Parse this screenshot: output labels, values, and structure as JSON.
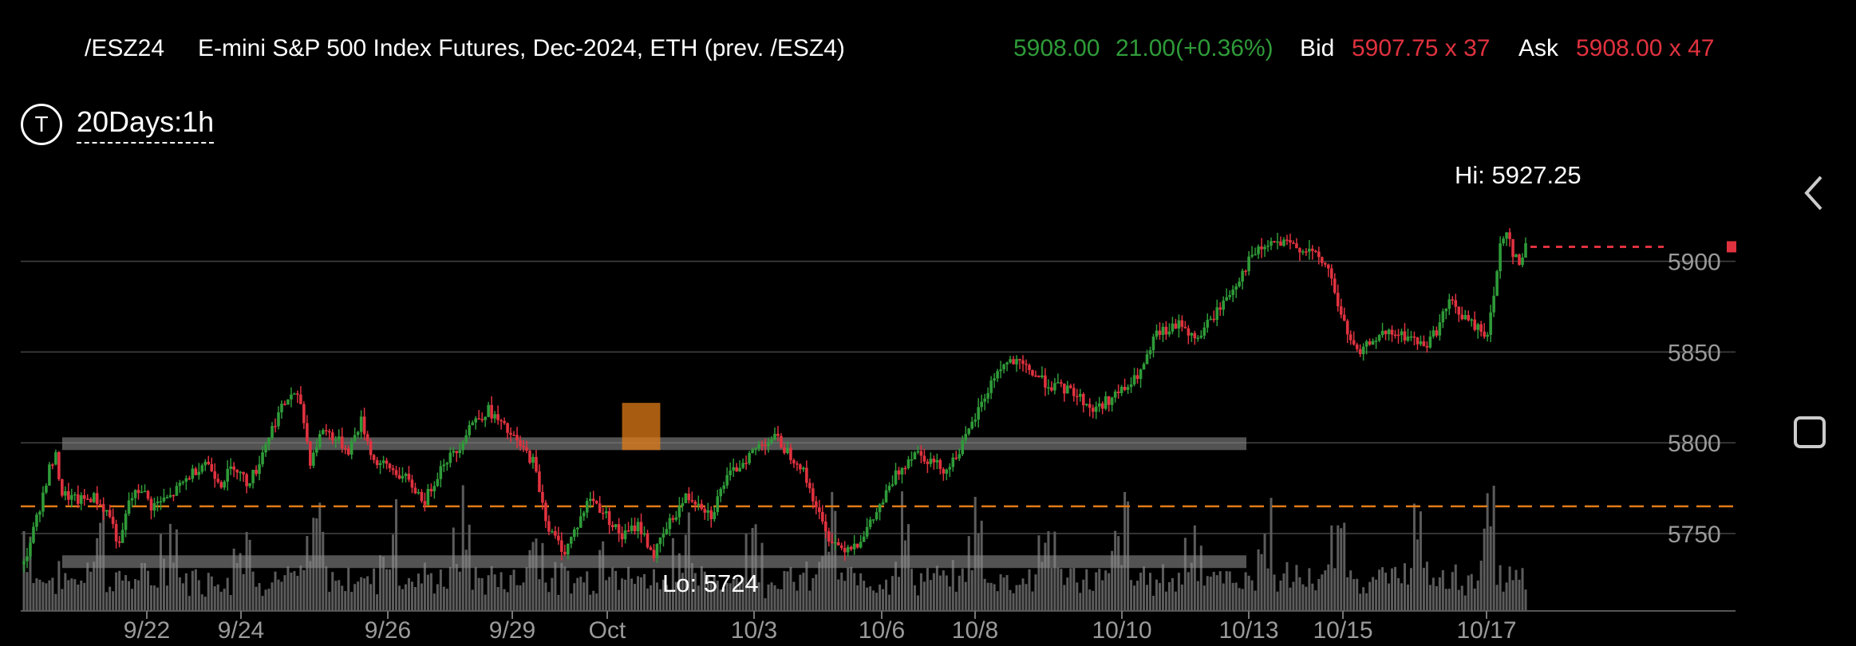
{
  "header": {
    "symbol": "/ESZ24",
    "description": "E-mini S&P 500 Index Futures, Dec-2024, ETH (prev. /ESZ4)",
    "last": "5908.00",
    "change": "21.00(+0.36%)",
    "bid_label": "Bid",
    "bid": "5907.75 x 37",
    "ask_label": "Ask",
    "ask": "5908.00 x 47"
  },
  "timeframe": {
    "icon": "T",
    "label": "20Days:1h"
  },
  "chart_data": {
    "type": "candlestick",
    "ylim": [
      5710,
      5935
    ],
    "y_ticks": [
      "5900",
      "5850",
      "5800",
      "5750"
    ],
    "x_ticks": [
      "9/22",
      "9/24",
      "9/26",
      "9/29",
      "Oct",
      "10/3",
      "10/6",
      "10/8",
      "10/10",
      "10/13",
      "10/15",
      "10/17"
    ],
    "hi_label": "Hi: 5927.25",
    "lo_label": "Lo: 5724",
    "last_price": 5908.0,
    "reference_line": 5765,
    "zones": [
      {
        "from": 5796,
        "to": 5803,
        "color": "#8a8a8a"
      },
      {
        "from": 5731,
        "to": 5738,
        "color": "#8a8a8a"
      },
      {
        "from": 5796,
        "to": 5822,
        "color": "#e07b17"
      }
    ],
    "price_path": [
      [
        0,
        5733
      ],
      [
        4,
        5758
      ],
      [
        8,
        5786
      ],
      [
        10,
        5792
      ],
      [
        12,
        5772
      ],
      [
        17,
        5768
      ],
      [
        22,
        5770
      ],
      [
        27,
        5760
      ],
      [
        30,
        5742
      ],
      [
        33,
        5768
      ],
      [
        37,
        5775
      ],
      [
        40,
        5765
      ],
      [
        46,
        5770
      ],
      [
        52,
        5782
      ],
      [
        57,
        5790
      ],
      [
        62,
        5778
      ],
      [
        66,
        5788
      ],
      [
        70,
        5778
      ],
      [
        73,
        5785
      ],
      [
        76,
        5800
      ],
      [
        80,
        5816
      ],
      [
        84,
        5827
      ],
      [
        87,
        5822
      ],
      [
        90,
        5790
      ],
      [
        94,
        5808
      ],
      [
        98,
        5802
      ],
      [
        102,
        5796
      ],
      [
        106,
        5812
      ],
      [
        110,
        5790
      ],
      [
        115,
        5786
      ],
      [
        120,
        5780
      ],
      [
        126,
        5768
      ],
      [
        132,
        5790
      ],
      [
        136,
        5795
      ],
      [
        140,
        5810
      ],
      [
        146,
        5818
      ],
      [
        150,
        5810
      ],
      [
        155,
        5800
      ],
      [
        160,
        5790
      ],
      [
        165,
        5752
      ],
      [
        170,
        5740
      ],
      [
        174,
        5755
      ],
      [
        178,
        5770
      ],
      [
        183,
        5760
      ],
      [
        188,
        5748
      ],
      [
        193,
        5755
      ],
      [
        198,
        5738
      ],
      [
        203,
        5756
      ],
      [
        208,
        5770
      ],
      [
        212,
        5768
      ],
      [
        216,
        5760
      ],
      [
        220,
        5778
      ],
      [
        226,
        5790
      ],
      [
        232,
        5800
      ],
      [
        236,
        5803
      ],
      [
        240,
        5795
      ],
      [
        244,
        5788
      ],
      [
        248,
        5770
      ],
      [
        252,
        5750
      ],
      [
        257,
        5742
      ],
      [
        262,
        5745
      ],
      [
        266,
        5755
      ],
      [
        270,
        5768
      ],
      [
        274,
        5782
      ],
      [
        280,
        5796
      ],
      [
        285,
        5790
      ],
      [
        290,
        5785
      ],
      [
        296,
        5802
      ],
      [
        300,
        5818
      ],
      [
        306,
        5840
      ],
      [
        310,
        5845
      ],
      [
        316,
        5840
      ],
      [
        322,
        5832
      ],
      [
        330,
        5828
      ],
      [
        336,
        5818
      ],
      [
        342,
        5825
      ],
      [
        348,
        5832
      ],
      [
        352,
        5842
      ],
      [
        356,
        5860
      ],
      [
        360,
        5862
      ],
      [
        364,
        5866
      ],
      [
        368,
        5856
      ],
      [
        374,
        5870
      ],
      [
        380,
        5885
      ],
      [
        386,
        5903
      ],
      [
        392,
        5910
      ],
      [
        398,
        5909
      ],
      [
        404,
        5906
      ],
      [
        410,
        5896
      ],
      [
        414,
        5870
      ],
      [
        418,
        5852
      ],
      [
        420,
        5848
      ],
      [
        424,
        5858
      ],
      [
        430,
        5860
      ],
      [
        436,
        5858
      ],
      [
        440,
        5853
      ],
      [
        444,
        5862
      ],
      [
        448,
        5878
      ],
      [
        452,
        5870
      ],
      [
        456,
        5864
      ],
      [
        460,
        5860
      ],
      [
        462,
        5880
      ],
      [
        464,
        5910
      ],
      [
        466,
        5918
      ],
      [
        468,
        5905
      ],
      [
        470,
        5898
      ],
      [
        472,
        5908
      ]
    ],
    "volume": "relative hourly volume bars, spikes at each session open"
  },
  "side": {
    "back_icon": "chevron-left-icon",
    "square_icon": "square-icon"
  }
}
